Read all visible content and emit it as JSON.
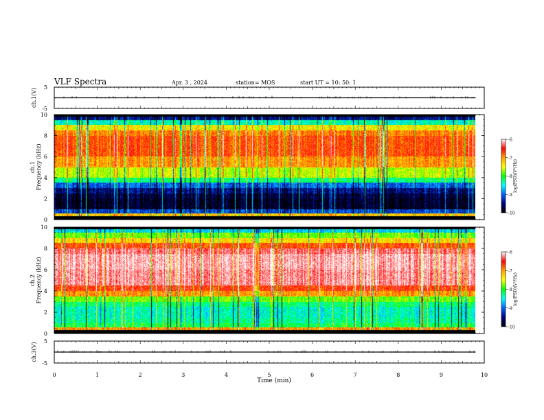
{
  "header": {
    "title": "VLF Spectra",
    "date": "Apr. 3  , 2024",
    "station": "station= MOS",
    "start": "start  UT =   10: 50: 1"
  },
  "colorbar": {
    "ticks": [
      "-6",
      "-7",
      "-8",
      "-9",
      "-10"
    ],
    "label": "log(PSD)(V²/Hz)",
    "colors": [
      "#ffffff",
      "#ff0000",
      "#ffa000",
      "#ffff00",
      "#00ff00",
      "#00ffff",
      "#0060ff",
      "#000080",
      "#000000"
    ]
  },
  "chart_data": [
    {
      "type": "line",
      "panel": "ch1-waveform",
      "ylabel": "ch.1(V)",
      "yticks": [
        "5",
        "-5"
      ],
      "ylim": [
        -5,
        5
      ],
      "x": [
        0,
        1,
        2,
        3,
        4,
        5,
        6,
        7,
        8,
        9,
        9.8
      ],
      "y": [
        0,
        0,
        0,
        0,
        0,
        0,
        0,
        0,
        0,
        0,
        0
      ]
    },
    {
      "type": "heatmap",
      "panel": "ch1-spectrogram",
      "ylabel": "ch.1 Frequency (kHz)",
      "yticks": [
        "0",
        "2",
        "4",
        "6",
        "8",
        "10"
      ],
      "ylim": [
        0,
        10
      ],
      "xlim": [
        0,
        10
      ],
      "data_end_min": 9.8,
      "value_scale": "log(PSD)(V²/Hz)",
      "zlim": [
        -10,
        -6
      ],
      "freq_bands_khz": [
        0,
        0.3,
        0.6,
        1.0,
        1.5,
        2.0,
        2.5,
        3.0,
        3.5,
        4.0,
        5.0,
        6.0,
        7.0,
        8.0,
        8.5,
        9.0,
        9.5,
        9.8,
        10.0
      ],
      "band_log_psd": [
        -10,
        -7.4,
        -9.3,
        -9.9,
        -9.9,
        -9.8,
        -9.6,
        -9.2,
        -8.4,
        -7.8,
        -7.2,
        -6.9,
        -6.9,
        -7.1,
        -7.6,
        -8.6,
        -9.6,
        -10
      ]
    },
    {
      "type": "heatmap",
      "panel": "ch2-spectrogram",
      "ylabel": "ch.2 Frequency (kHz)",
      "yticks": [
        "0",
        "2",
        "4",
        "6",
        "8",
        "10"
      ],
      "ylim": [
        0,
        10
      ],
      "xlim": [
        0,
        10
      ],
      "data_end_min": 9.8,
      "value_scale": "log(PSD)(V²/Hz)",
      "zlim": [
        -10,
        -6
      ],
      "freq_bands_khz": [
        0,
        0.3,
        0.6,
        1.0,
        1.5,
        2.0,
        2.5,
        3.0,
        3.5,
        4.0,
        4.5,
        6.0,
        7.5,
        8.0,
        8.5,
        9.0,
        9.5,
        9.8,
        10.0
      ],
      "band_log_psd": [
        -10,
        -7.2,
        -8.3,
        -8.5,
        -8.6,
        -8.6,
        -8.4,
        -8.0,
        -7.2,
        -6.8,
        -6.3,
        -6.2,
        -6.4,
        -6.9,
        -7.5,
        -8.0,
        -8.8,
        -10
      ]
    },
    {
      "type": "line",
      "panel": "ch3-waveform",
      "ylabel": "ch.3(V)",
      "yticks": [
        "5",
        "-5"
      ],
      "ylim": [
        -5,
        5
      ],
      "x": [
        0,
        1,
        2,
        3,
        4,
        5,
        6,
        7,
        8,
        9,
        9.8
      ],
      "y": [
        0,
        0,
        0,
        0,
        0,
        0,
        0,
        0,
        0,
        0,
        0
      ]
    }
  ],
  "xaxis": {
    "label": "Time (min)",
    "ticks": [
      "0",
      "1",
      "2",
      "3",
      "4",
      "5",
      "6",
      "7",
      "8",
      "9",
      "10"
    ],
    "xlim": [
      0,
      10
    ]
  }
}
